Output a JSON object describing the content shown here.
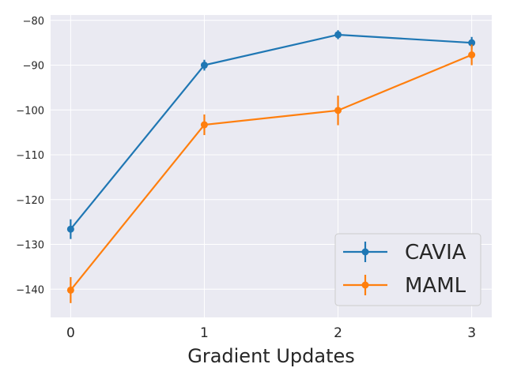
{
  "chart_data": {
    "type": "line",
    "title": "",
    "xlabel": "Gradient Updates",
    "ylabel": "",
    "x": [
      0,
      1,
      2,
      3
    ],
    "x_tick_labels": [
      "0",
      "1",
      "2",
      "3"
    ],
    "y_ticks": [
      -80,
      -90,
      -100,
      -110,
      -120,
      -130,
      -140
    ],
    "y_tick_labels": [
      "−80",
      "−90",
      "−100",
      "−110",
      "−120",
      "−130",
      "−140"
    ],
    "xlim": [
      -0.15,
      3.15
    ],
    "ylim": [
      -146.3,
      -78.8
    ],
    "grid": true,
    "legend_position": "bottom-right",
    "series": [
      {
        "name": "CAVIA",
        "color": "#1f77b4",
        "values": [
          -126.6,
          -90.0,
          -83.2,
          -85.0
        ],
        "errors": [
          2.2,
          1.2,
          1.0,
          1.3
        ]
      },
      {
        "name": "MAML",
        "color": "#ff7f0e",
        "values": [
          -140.2,
          -103.3,
          -100.1,
          -87.7
        ],
        "errors": [
          2.9,
          2.3,
          3.3,
          2.3
        ]
      }
    ]
  }
}
